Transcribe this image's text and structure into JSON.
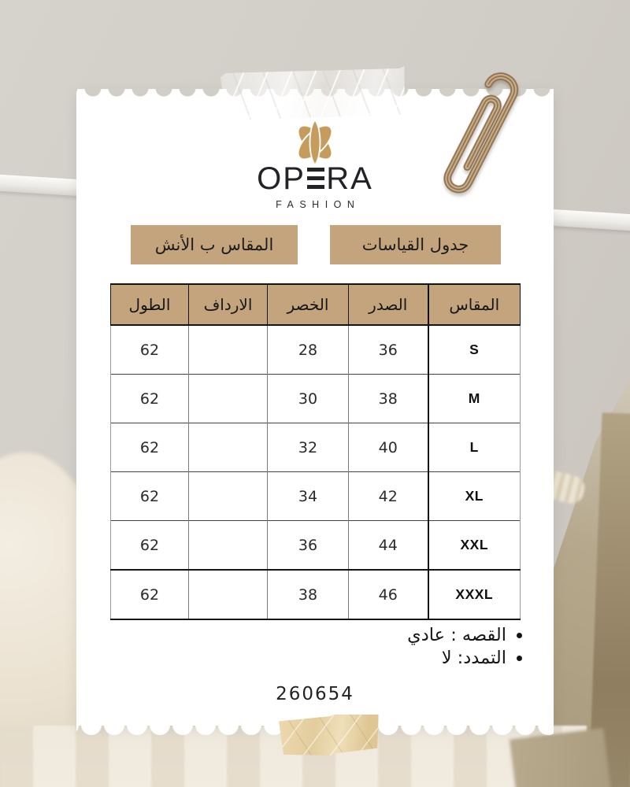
{
  "card": {
    "brand": {
      "wordmark_full": "OPERA",
      "wordmark_pre": "OP",
      "wordmark_post": "RA",
      "subtitle": "FASHION"
    },
    "badges": {
      "chart_title": "جدول القياسات",
      "unit_note": "المقاس ب الأنش"
    },
    "table": {
      "columns": [
        "المقاس",
        "الصدر",
        "الخصر",
        "الارداف",
        "الطول"
      ],
      "column_keys": [
        "size",
        "chest",
        "waist",
        "hips",
        "length"
      ],
      "rows": [
        [
          "S",
          "36",
          "28",
          "",
          "62"
        ],
        [
          "M",
          "38",
          "30",
          "",
          "62"
        ],
        [
          "L",
          "40",
          "32",
          "",
          "62"
        ],
        [
          "XL",
          "42",
          "34",
          "",
          "62"
        ],
        [
          "XXL",
          "44",
          "36",
          "",
          "62"
        ],
        [
          "XXXL",
          "46",
          "38",
          "",
          "62"
        ]
      ]
    },
    "notes": [
      "القصه : عادي",
      "التمدد: لا"
    ],
    "product_code": "260654"
  },
  "icons": {
    "brand_mark": "opera-rosette-icon",
    "paperclip": "paperclip-icon",
    "tape_top": "clear-tape",
    "tape_bottom": "kraft-tape"
  },
  "colors": {
    "wall": "#d1cdc7",
    "card": "#ffffff",
    "tan": "#c4a47d",
    "gold": "#c69c5c",
    "ink": "#1d1d1f",
    "kraft": "#e6d0a4"
  }
}
